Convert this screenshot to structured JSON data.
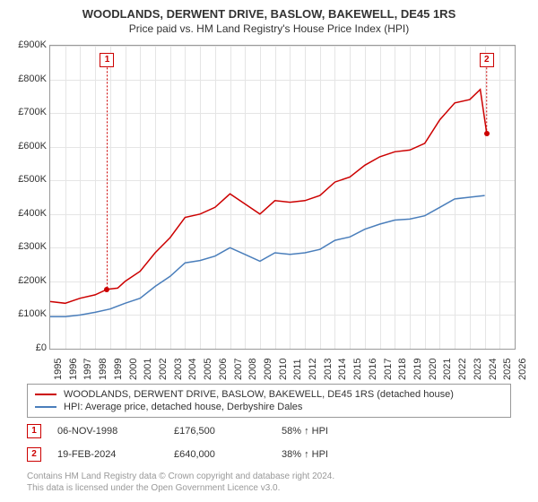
{
  "title": "WOODLANDS, DERWENT DRIVE, BASLOW, BAKEWELL, DE45 1RS",
  "subtitle": "Price paid vs. HM Land Registry's House Price Index (HPI)",
  "chart": {
    "type": "line",
    "background_color": "#ffffff",
    "grid_color": "#e5e5e5",
    "border_color": "#999999",
    "xlim": [
      1995,
      2026
    ],
    "ylim": [
      0,
      900000
    ],
    "ytick_step": 100000,
    "ytick_labels": [
      "£0",
      "£100K",
      "£200K",
      "£300K",
      "£400K",
      "£500K",
      "£600K",
      "£700K",
      "£800K",
      "£900K"
    ],
    "xtick_step": 1,
    "xtick_labels": [
      "1995",
      "1996",
      "1997",
      "1998",
      "1999",
      "2000",
      "2001",
      "2002",
      "2003",
      "2004",
      "2005",
      "2006",
      "2007",
      "2008",
      "2009",
      "2010",
      "2011",
      "2012",
      "2013",
      "2014",
      "2015",
      "2016",
      "2017",
      "2018",
      "2019",
      "2020",
      "2021",
      "2022",
      "2023",
      "2024",
      "2025",
      "2026"
    ],
    "label_fontsize": 11,
    "title_fontsize": 13,
    "series": [
      {
        "name": "property",
        "label": "WOODLANDS, DERWENT DRIVE, BASLOW, BAKEWELL, DE45 1RS (detached house)",
        "color": "#cc0000",
        "line_width": 1.5,
        "data": [
          [
            1995,
            140000
          ],
          [
            1996,
            135000
          ],
          [
            1997,
            150000
          ],
          [
            1998,
            160000
          ],
          [
            1998.8,
            176500
          ],
          [
            1999.5,
            180000
          ],
          [
            2000,
            200000
          ],
          [
            2001,
            230000
          ],
          [
            2002,
            285000
          ],
          [
            2003,
            330000
          ],
          [
            2004,
            390000
          ],
          [
            2005,
            400000
          ],
          [
            2006,
            420000
          ],
          [
            2007,
            460000
          ],
          [
            2008,
            430000
          ],
          [
            2009,
            400000
          ],
          [
            2010,
            440000
          ],
          [
            2011,
            435000
          ],
          [
            2012,
            440000
          ],
          [
            2013,
            455000
          ],
          [
            2014,
            495000
          ],
          [
            2015,
            510000
          ],
          [
            2016,
            545000
          ],
          [
            2017,
            570000
          ],
          [
            2018,
            585000
          ],
          [
            2019,
            590000
          ],
          [
            2020,
            610000
          ],
          [
            2021,
            680000
          ],
          [
            2022,
            730000
          ],
          [
            2023,
            740000
          ],
          [
            2023.7,
            770000
          ],
          [
            2024.13,
            640000
          ]
        ]
      },
      {
        "name": "hpi",
        "label": "HPI: Average price, detached house, Derbyshire Dales",
        "color": "#4a7ebb",
        "line_width": 1.5,
        "data": [
          [
            1995,
            95000
          ],
          [
            1996,
            95000
          ],
          [
            1997,
            100000
          ],
          [
            1998,
            108000
          ],
          [
            1999,
            118000
          ],
          [
            2000,
            135000
          ],
          [
            2001,
            150000
          ],
          [
            2002,
            185000
          ],
          [
            2003,
            215000
          ],
          [
            2004,
            255000
          ],
          [
            2005,
            262000
          ],
          [
            2006,
            275000
          ],
          [
            2007,
            300000
          ],
          [
            2008,
            280000
          ],
          [
            2009,
            260000
          ],
          [
            2010,
            285000
          ],
          [
            2011,
            280000
          ],
          [
            2012,
            285000
          ],
          [
            2013,
            295000
          ],
          [
            2014,
            322000
          ],
          [
            2015,
            332000
          ],
          [
            2016,
            355000
          ],
          [
            2017,
            370000
          ],
          [
            2018,
            382000
          ],
          [
            2019,
            385000
          ],
          [
            2020,
            395000
          ],
          [
            2021,
            420000
          ],
          [
            2022,
            445000
          ],
          [
            2023,
            450000
          ],
          [
            2024,
            455000
          ]
        ]
      }
    ],
    "markers": [
      {
        "id": "1",
        "x": 1998.8,
        "y_box": 835000,
        "point_y": 176500,
        "color": "#cc0000"
      },
      {
        "id": "2",
        "x": 2024.13,
        "y_box": 835000,
        "point_y": 640000,
        "color": "#cc0000"
      }
    ]
  },
  "legend": {
    "rows": [
      {
        "color": "#cc0000",
        "label": "WOODLANDS, DERWENT DRIVE, BASLOW, BAKEWELL, DE45 1RS (detached house)"
      },
      {
        "color": "#4a7ebb",
        "label": "HPI: Average price, detached house, Derbyshire Dales"
      }
    ]
  },
  "events": [
    {
      "id": "1",
      "date": "06-NOV-1998",
      "price": "£176,500",
      "hpi": "58% ↑ HPI"
    },
    {
      "id": "2",
      "date": "19-FEB-2024",
      "price": "£640,000",
      "hpi": "38% ↑ HPI"
    }
  ],
  "footer": {
    "line1": "Contains HM Land Registry data © Crown copyright and database right 2024.",
    "line2": "This data is licensed under the Open Government Licence v3.0."
  }
}
